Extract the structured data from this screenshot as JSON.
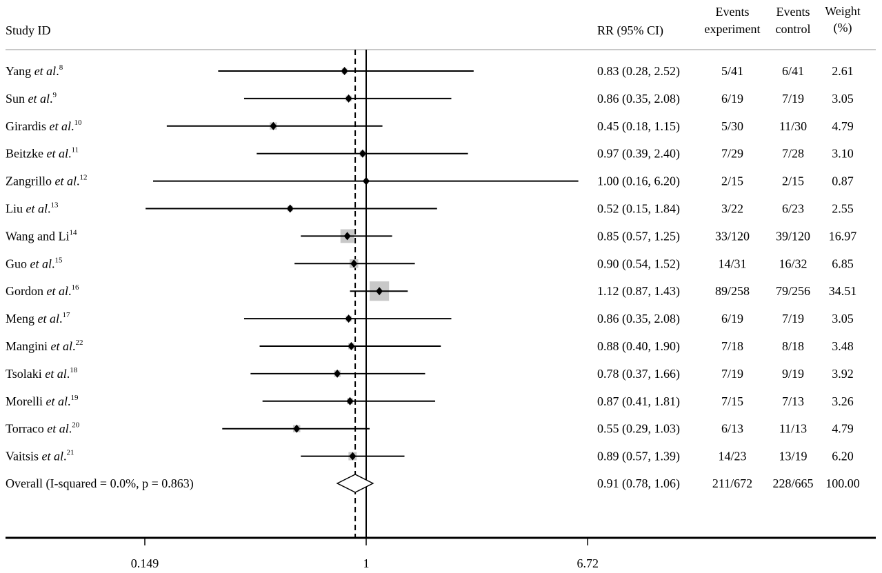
{
  "chart_data": {
    "type": "forest",
    "scale": "log",
    "xlim": [
      0.149,
      6.72
    ],
    "x_ticks": [
      "0.149",
      "1",
      "6.72"
    ],
    "reference_line": 1,
    "overall_line": 0.91,
    "colors": {
      "line": "#000000",
      "weight_box": "#c8c8c8",
      "header_rule": "#c8c8c8"
    },
    "headers": {
      "study": "Study ID",
      "rr": "RR (95% CI)",
      "events_exp": [
        "Events",
        "experiment"
      ],
      "events_ctrl": [
        "Events",
        "control"
      ],
      "weight": [
        "Weight",
        "(%)"
      ]
    },
    "studies": [
      {
        "name": "Yang",
        "etal": "et al",
        "ref": "8",
        "rr": 0.83,
        "lo": 0.28,
        "hi": 2.52,
        "ci_text": "0.83 (0.28, 2.52)",
        "exp": "5/41",
        "ctrl": "6/41",
        "weight": "2.61"
      },
      {
        "name": "Sun",
        "etal": "et al",
        "ref": "9",
        "rr": 0.86,
        "lo": 0.35,
        "hi": 2.08,
        "ci_text": "0.86 (0.35, 2.08)",
        "exp": "6/19",
        "ctrl": "7/19",
        "weight": "3.05"
      },
      {
        "name": "Girardis",
        "etal": "et al",
        "ref": "10",
        "rr": 0.45,
        "lo": 0.18,
        "hi": 1.15,
        "ci_text": "0.45 (0.18, 1.15)",
        "exp": "5/30",
        "ctrl": "11/30",
        "weight": "4.79"
      },
      {
        "name": "Beitzke",
        "etal": "et al",
        "ref": "11",
        "rr": 0.97,
        "lo": 0.39,
        "hi": 2.4,
        "ci_text": "0.97 (0.39, 2.40)",
        "exp": "7/29",
        "ctrl": "7/28",
        "weight": "3.10"
      },
      {
        "name": "Zangrillo",
        "etal": "et al",
        "ref": "12",
        "rr": 1.0,
        "lo": 0.16,
        "hi": 6.2,
        "ci_text": "1.00 (0.16, 6.20)",
        "exp": "2/15",
        "ctrl": "2/15",
        "weight": "0.87"
      },
      {
        "name": "Liu",
        "etal": "et al",
        "ref": "13",
        "rr": 0.52,
        "lo": 0.15,
        "hi": 1.84,
        "ci_text": "0.52 (0.15, 1.84)",
        "exp": "3/22",
        "ctrl": "6/23",
        "weight": "2.55"
      },
      {
        "name": "Wang and Li",
        "etal": "",
        "ref": "14",
        "rr": 0.85,
        "lo": 0.57,
        "hi": 1.25,
        "ci_text": "0.85 (0.57, 1.25)",
        "exp": "33/120",
        "ctrl": "39/120",
        "weight": "16.97"
      },
      {
        "name": "Guo",
        "etal": "et al",
        "ref": "15",
        "rr": 0.9,
        "lo": 0.54,
        "hi": 1.52,
        "ci_text": "0.90 (0.54, 1.52)",
        "exp": "14/31",
        "ctrl": "16/32",
        "weight": "6.85"
      },
      {
        "name": "Gordon",
        "etal": "et al",
        "ref": "16",
        "rr": 1.12,
        "lo": 0.87,
        "hi": 1.43,
        "ci_text": "1.12 (0.87, 1.43)",
        "exp": "89/258",
        "ctrl": "79/256",
        "weight": "34.51"
      },
      {
        "name": "Meng",
        "etal": "et al",
        "ref": "17",
        "rr": 0.86,
        "lo": 0.35,
        "hi": 2.08,
        "ci_text": "0.86 (0.35, 2.08)",
        "exp": "6/19",
        "ctrl": "7/19",
        "weight": "3.05"
      },
      {
        "name": "Mangini",
        "etal": "et al",
        "ref": "22",
        "rr": 0.88,
        "lo": 0.4,
        "hi": 1.9,
        "ci_text": "0.88 (0.40, 1.90)",
        "exp": "7/18",
        "ctrl": "8/18",
        "weight": "3.48"
      },
      {
        "name": "Tsolaki",
        "etal": "et al",
        "ref": "18",
        "rr": 0.78,
        "lo": 0.37,
        "hi": 1.66,
        "ci_text": "0.78 (0.37, 1.66)",
        "exp": "7/19",
        "ctrl": "9/19",
        "weight": "3.92"
      },
      {
        "name": "Morelli",
        "etal": "et al",
        "ref": "19",
        "rr": 0.87,
        "lo": 0.41,
        "hi": 1.81,
        "ci_text": "0.87 (0.41, 1.81)",
        "exp": "7/15",
        "ctrl": "7/13",
        "weight": "3.26"
      },
      {
        "name": "Torraco",
        "etal": "et al",
        "ref": "20",
        "rr": 0.55,
        "lo": 0.29,
        "hi": 1.03,
        "ci_text": "0.55 (0.29, 1.03)",
        "exp": "6/13",
        "ctrl": "11/13",
        "weight": "4.79"
      },
      {
        "name": "Vaitsis",
        "etal": "et al",
        "ref": "21",
        "rr": 0.89,
        "lo": 0.57,
        "hi": 1.39,
        "ci_text": "0.89 (0.57, 1.39)",
        "exp": "14/23",
        "ctrl": "13/19",
        "weight": "6.20"
      }
    ],
    "overall": {
      "label": "Overall (I-squared = 0.0%, p = 0.863)",
      "rr": 0.91,
      "lo": 0.78,
      "hi": 1.06,
      "ci_text": "0.91 (0.78, 1.06)",
      "exp": "211/672",
      "ctrl": "228/665",
      "weight": "100.00"
    }
  }
}
